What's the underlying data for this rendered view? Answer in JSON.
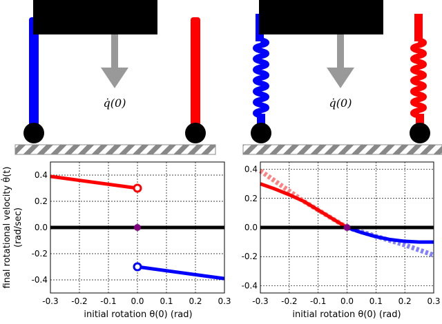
{
  "diagrams": [
    {
      "name": "rigid-legs",
      "arrow_label": "q̇(0)",
      "left_leg_color": "#0000ff",
      "right_leg_color": "#ff0000"
    },
    {
      "name": "spring-legs",
      "arrow_label": "q̇(0)",
      "left_leg_color": "#0000ff",
      "right_leg_color": "#ff0000"
    }
  ],
  "chart_data": [
    {
      "type": "line",
      "xlabel": "initial rotation θ(0) (rad)",
      "ylabel": "final rotational velocity θ̇(t)",
      "ylabel2": "(rad/sec)",
      "xlim": [
        -0.3,
        0.3
      ],
      "ylim": [
        -0.5,
        0.5
      ],
      "grid": true,
      "xticks": [
        "-0.3",
        "-0.2",
        "-0.1",
        "0.0",
        "0.1",
        "0.2",
        "0.3"
      ],
      "yticks": [
        "0.4",
        "0.2",
        "0.0",
        "-0.2",
        "-0.4"
      ],
      "series": [
        {
          "name": "red",
          "color": "#ff0000",
          "style": "solid",
          "x": [
            -0.3,
            0.0
          ],
          "y": [
            0.39,
            0.3
          ],
          "open_marker_at_end": true
        },
        {
          "name": "blue",
          "color": "#0000ff",
          "style": "solid",
          "x": [
            0.0,
            0.3
          ],
          "y": [
            -0.3,
            -0.39
          ],
          "open_marker_at_start": true
        },
        {
          "name": "zero",
          "color": "#000000",
          "style": "thick",
          "x": [
            -0.3,
            0.3
          ],
          "y": [
            0,
            0
          ]
        }
      ],
      "points": [
        {
          "x": 0,
          "y": 0,
          "color": "#800080"
        }
      ]
    },
    {
      "type": "line",
      "xlabel": "initial rotation θ(0) (rad)",
      "xlim": [
        -0.3,
        0.3
      ],
      "ylim": [
        -0.45,
        0.45
      ],
      "grid": true,
      "xticks": [
        "-0.3",
        "-0.2",
        "-0.1",
        "0.0",
        "0.1",
        "0.2",
        "0.3"
      ],
      "yticks": [
        "0.4",
        "0.2",
        "0.0",
        "-0.2",
        "-0.4"
      ],
      "series": [
        {
          "name": "red-dotted",
          "color": "#ff8080",
          "style": "dotted",
          "x": [
            -0.3,
            -0.25,
            -0.2,
            -0.15,
            -0.1,
            -0.05,
            0
          ],
          "y": [
            0.39,
            0.32,
            0.25,
            0.18,
            0.12,
            0.06,
            0
          ]
        },
        {
          "name": "blue-dotted",
          "color": "#8080ff",
          "style": "dotted",
          "x": [
            0,
            0.05,
            0.1,
            0.15,
            0.2,
            0.25,
            0.3
          ],
          "y": [
            0,
            -0.03,
            -0.06,
            -0.09,
            -0.12,
            -0.155,
            -0.19
          ]
        },
        {
          "name": "red",
          "color": "#ff0000",
          "style": "solid",
          "x": [
            -0.3,
            -0.25,
            -0.2,
            -0.15,
            -0.1,
            -0.05,
            0
          ],
          "y": [
            0.3,
            0.265,
            0.225,
            0.18,
            0.12,
            0.06,
            0
          ]
        },
        {
          "name": "blue",
          "color": "#0000ff",
          "style": "solid",
          "x": [
            0,
            0.05,
            0.1,
            0.15,
            0.2,
            0.25,
            0.3
          ],
          "y": [
            0,
            -0.035,
            -0.063,
            -0.083,
            -0.095,
            -0.1,
            -0.1
          ]
        },
        {
          "name": "zero",
          "color": "#000000",
          "style": "thick",
          "x": [
            -0.3,
            0.3
          ],
          "y": [
            0,
            0
          ]
        }
      ],
      "points": [
        {
          "x": 0,
          "y": 0,
          "color": "#800080"
        }
      ]
    }
  ]
}
